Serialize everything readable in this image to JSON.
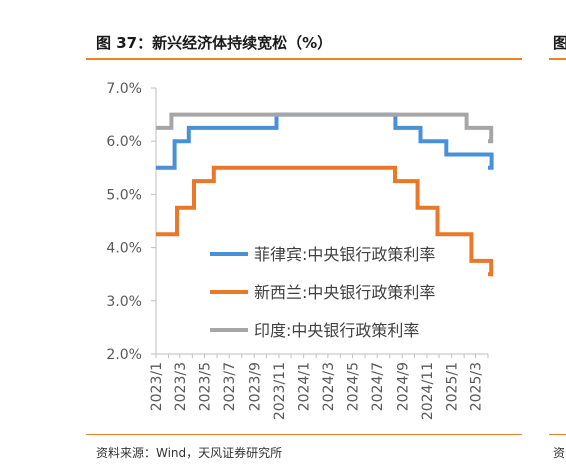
{
  "figure": {
    "title": "图 37：新兴经济体持续宽松（%）",
    "source": "资料来源：Wind，天风证券研究所",
    "right_title_fragment": "图",
    "right_source_fragment": "资"
  },
  "colors": {
    "accent_rule": "#e8832a"
  },
  "chart_data": {
    "type": "line",
    "step": true,
    "ylim": [
      2.0,
      7.0
    ],
    "yticks": [
      "2.0%",
      "3.0%",
      "4.0%",
      "5.0%",
      "6.0%",
      "7.0%"
    ],
    "xlim": [
      "2023-01",
      "2025-04"
    ],
    "xticks": [
      "2023/1",
      "2023/3",
      "2023/5",
      "2023/7",
      "2023/9",
      "2023/11",
      "2024/1",
      "2024/3",
      "2024/5",
      "2024/7",
      "2024/9",
      "2024/11",
      "2025/1",
      "2025/3"
    ],
    "grid": false,
    "legend_position": "center-right",
    "series": [
      {
        "name": "菲律宾:中央银行政策利率",
        "color": "#4a90d9",
        "points": [
          [
            "2023-01-01",
            5.5
          ],
          [
            "2023-02-16",
            6.0
          ],
          [
            "2023-03-23",
            6.25
          ],
          [
            "2023-10-26",
            6.5
          ],
          [
            "2024-08-15",
            6.25
          ],
          [
            "2024-10-16",
            6.0
          ],
          [
            "2024-12-19",
            5.75
          ],
          [
            "2025-04-10",
            5.5
          ]
        ]
      },
      {
        "name": "新西兰:中央银行政策利率",
        "color": "#e8782a",
        "points": [
          [
            "2023-01-01",
            4.25
          ],
          [
            "2023-02-22",
            4.75
          ],
          [
            "2023-04-05",
            5.25
          ],
          [
            "2023-05-24",
            5.5
          ],
          [
            "2024-08-14",
            5.25
          ],
          [
            "2024-10-09",
            4.75
          ],
          [
            "2024-11-27",
            4.25
          ],
          [
            "2025-02-19",
            3.75
          ],
          [
            "2025-04-09",
            3.5
          ]
        ]
      },
      {
        "name": "印度:中央银行政策利率",
        "color": "#a6a6a6",
        "points": [
          [
            "2023-01-01",
            6.25
          ],
          [
            "2023-02-08",
            6.5
          ],
          [
            "2025-02-07",
            6.25
          ],
          [
            "2025-04-09",
            6.0
          ]
        ]
      }
    ]
  }
}
